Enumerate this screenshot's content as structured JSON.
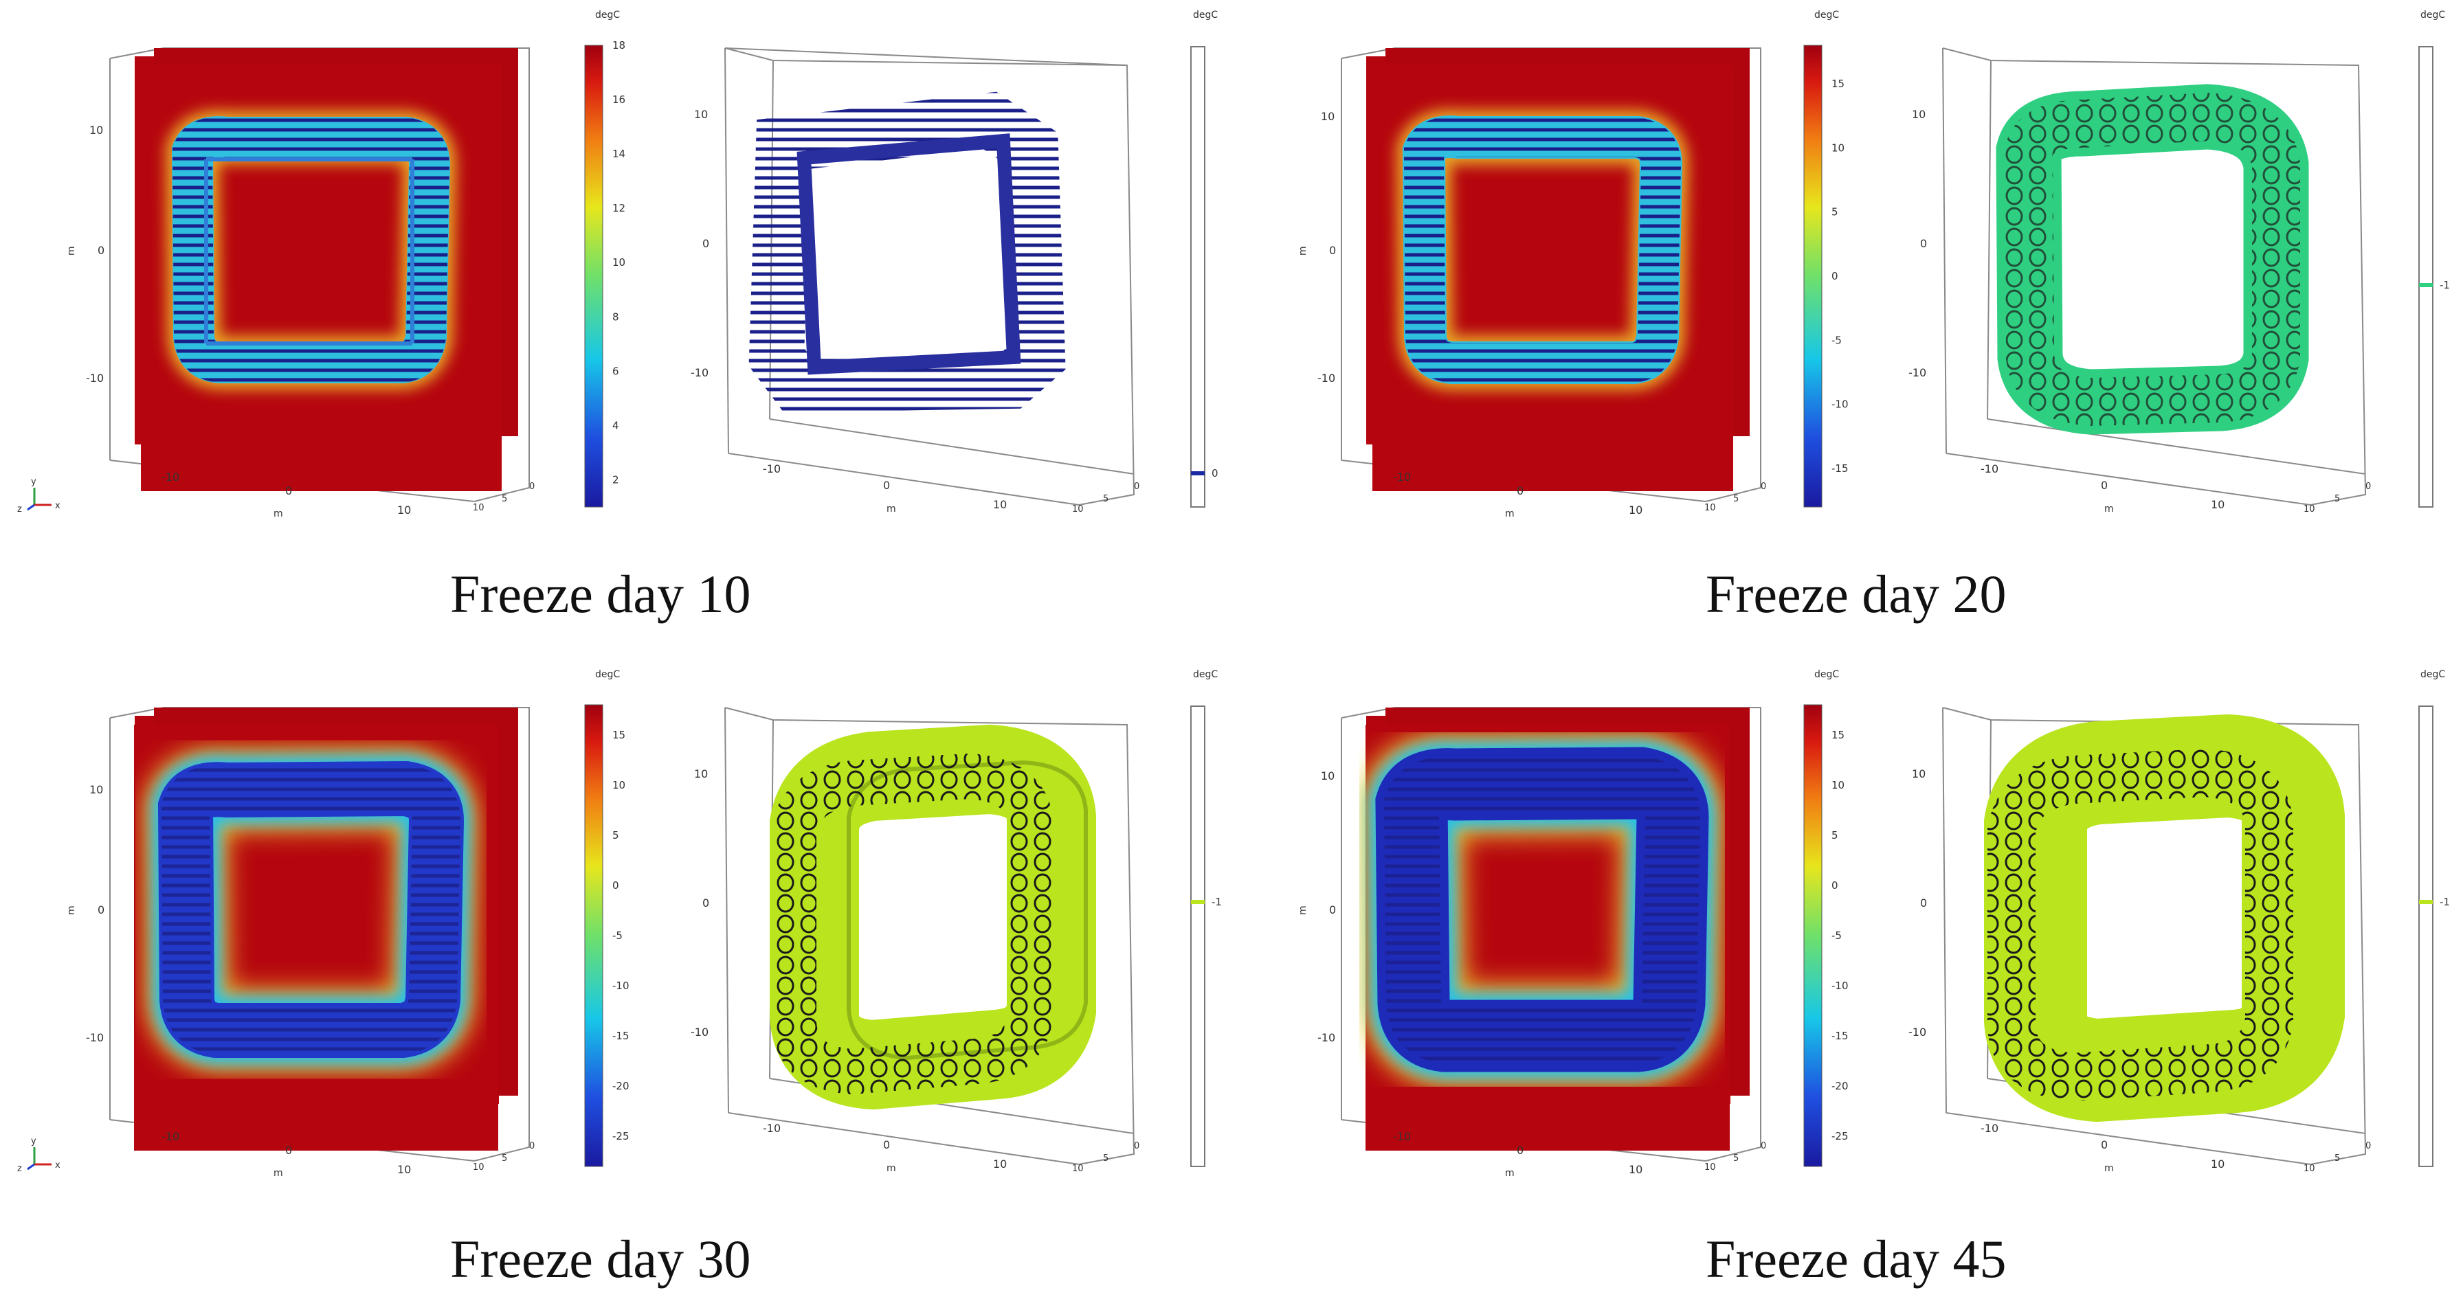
{
  "units_label": "degC",
  "axis_unit": "m",
  "axis_ticks": {
    "x": [
      "-10",
      "0",
      "10"
    ],
    "y": [
      "10",
      "0",
      "-10"
    ],
    "z": [
      "0",
      "5",
      "10"
    ]
  },
  "triad": {
    "x": "x",
    "y": "y",
    "z": "z"
  },
  "colors": {
    "background_red": "#b5060f",
    "frozen_blue": "#2735a8",
    "isosurface_green_20": "#2fcf82",
    "isosurface_green_30": "#b9e41e",
    "outline_gray": "#777777"
  },
  "figures": [
    {
      "caption": "Freeze day 10",
      "colorbar_left": {
        "ticks": [
          "18",
          "16",
          "14",
          "12",
          "10",
          "8",
          "6",
          "4",
          "2"
        ],
        "min": 1,
        "max": 18
      },
      "colorbar_right": {
        "value_label": "0",
        "marker_color": "#1a2aa0"
      }
    },
    {
      "caption": "Freeze day 20",
      "colorbar_left": {
        "ticks": [
          "15",
          "10",
          "5",
          "0",
          "-5",
          "-10",
          "-15"
        ],
        "min": -18,
        "max": 18
      },
      "colorbar_right": {
        "value_label": "-1",
        "marker_color": "#2fcf82"
      }
    },
    {
      "caption": "Freeze day 30",
      "colorbar_left": {
        "ticks": [
          "15",
          "10",
          "5",
          "0",
          "-5",
          "-10",
          "-15",
          "-20",
          "-25"
        ],
        "min": -28,
        "max": 18
      },
      "colorbar_right": {
        "value_label": "-1",
        "marker_color": "#b9e41e"
      }
    },
    {
      "caption": "Freeze day 45",
      "colorbar_left": {
        "ticks": [
          "15",
          "10",
          "5",
          "0",
          "-5",
          "-10",
          "-15",
          "-20",
          "-25"
        ],
        "min": -28,
        "max": 18
      },
      "colorbar_right": {
        "value_label": "-1",
        "marker_color": "#b9e41e"
      }
    }
  ]
}
